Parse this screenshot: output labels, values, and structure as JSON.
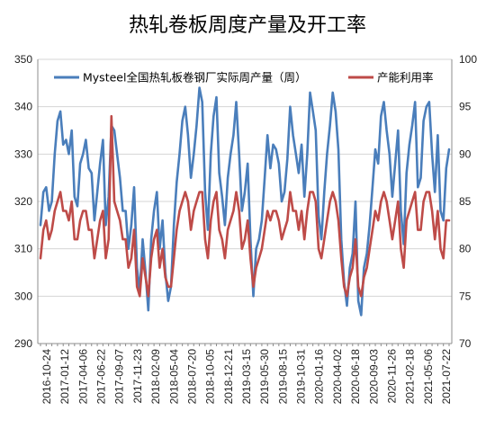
{
  "chart_data": {
    "type": "line",
    "title": "热轧卷板周度产量及开工率",
    "legend_position": "top",
    "grid": true,
    "y_left": {
      "min": 290,
      "max": 350,
      "step": 10,
      "ticks": [
        "290",
        "300",
        "310",
        "320",
        "330",
        "340",
        "350"
      ]
    },
    "y_right": {
      "min": 70,
      "max": 100,
      "step": 5,
      "ticks": [
        "70",
        "75",
        "80",
        "85",
        "90",
        "95",
        "100"
      ]
    },
    "x_tick_labels": [
      "2016-10-24",
      "2017-01-12",
      "2017-04-06",
      "2017-06-22",
      "2017-09-07",
      "2017-11-23",
      "2018-02-09",
      "2018-05-04",
      "2018-07-20",
      "2018-10-05",
      "2018-12-21",
      "2019-03-15",
      "2019-05-30",
      "2019-08-15",
      "2019-10-31",
      "2020-01-16",
      "2020-04-02",
      "2020-06-18",
      "2020-09-03",
      "2020-11-26",
      "2021-02-18",
      "2021-05-06",
      "2021-07-22"
    ],
    "series": [
      {
        "name": "Mysteel全国热轧板卷钢厂实际周产量（周）",
        "axis": "left",
        "color": "#4a7ebb",
        "values": [
          315,
          322,
          323,
          318,
          320,
          330,
          337,
          339,
          332,
          333,
          330,
          335,
          321,
          319,
          328,
          330,
          333,
          327,
          326,
          316,
          322,
          328,
          333,
          315,
          321,
          336,
          335,
          330,
          325,
          318,
          318,
          310,
          315,
          323,
          306,
          301,
          312,
          305,
          297,
          312,
          318,
          322,
          310,
          316,
          305,
          299,
          302,
          315,
          324,
          330,
          337,
          340,
          334,
          325,
          330,
          336,
          344,
          341,
          322,
          314,
          330,
          338,
          342,
          326,
          321,
          315,
          325,
          330,
          334,
          341,
          330,
          318,
          322,
          328,
          312,
          300,
          310,
          312,
          316,
          325,
          334,
          327,
          332,
          331,
          328,
          320,
          322,
          329,
          340,
          334,
          330,
          326,
          332,
          321,
          330,
          343,
          339,
          335,
          317,
          312,
          322,
          330,
          336,
          343,
          339,
          331,
          312,
          303,
          298,
          306,
          309,
          320,
          299,
          296,
          306,
          309,
          315,
          323,
          331,
          328,
          338,
          341,
          335,
          330,
          321,
          328,
          335,
          318,
          311,
          326,
          332,
          336,
          341,
          323,
          325,
          337,
          340,
          341,
          330,
          322,
          334,
          318,
          316,
          327,
          331
        ]
      },
      {
        "name": "产能利用率",
        "axis": "right",
        "color": "#be4b48",
        "values": [
          79,
          82,
          83,
          81,
          82,
          84,
          85,
          86,
          84,
          84,
          83,
          85,
          81,
          81,
          83,
          84,
          84,
          82,
          82,
          79,
          81,
          83,
          84,
          79,
          81,
          94,
          85,
          84,
          83,
          81,
          81,
          78,
          79,
          82,
          76,
          75,
          79,
          77,
          75,
          79,
          81,
          82,
          78,
          80,
          77,
          76,
          76,
          79,
          82,
          84,
          85,
          86,
          85,
          82,
          84,
          85,
          86,
          86,
          81,
          79,
          83,
          85,
          86,
          82,
          81,
          79,
          82,
          83,
          84,
          86,
          84,
          80,
          81,
          83,
          79,
          76,
          78,
          79,
          80,
          82,
          84,
          83,
          84,
          84,
          83,
          81,
          82,
          83,
          86,
          84,
          84,
          82,
          84,
          81,
          84,
          86,
          86,
          85,
          80,
          79,
          81,
          83,
          85,
          86,
          85,
          83,
          79,
          76,
          75,
          77,
          78,
          81,
          76,
          75,
          77,
          78,
          80,
          82,
          84,
          83,
          85,
          86,
          85,
          83,
          81,
          83,
          85,
          80,
          78,
          83,
          84,
          85,
          86,
          82,
          82,
          85,
          86,
          86,
          84,
          81,
          84,
          80,
          79,
          83,
          83
        ]
      }
    ]
  }
}
